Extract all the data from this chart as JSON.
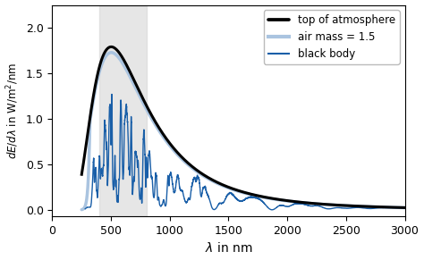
{
  "title": "",
  "xlabel": "$\\lambda$ in nm",
  "ylabel": "$dE/d\\lambda$ in W/m$^2$/nm",
  "xlim": [
    0,
    3000
  ],
  "ylim": [
    -0.07,
    2.25
  ],
  "xticks": [
    0,
    500,
    1000,
    1500,
    2000,
    2500,
    3000
  ],
  "yticks": [
    0.0,
    0.5,
    1.0,
    1.5,
    2.0
  ],
  "shaded_region": [
    400,
    800
  ],
  "shaded_color": "#d3d3d3",
  "shaded_alpha": 0.55,
  "black_body_color": "#000000",
  "black_body_linewidth": 2.2,
  "toa_color": "#aac4e0",
  "toa_linewidth": 2.5,
  "air_mass_color": "#1a5fa8",
  "air_mass_linewidth": 1.0,
  "legend_labels": [
    "black body",
    "top of atmosphere",
    "air mass = 1.5"
  ],
  "legend_loc": "upper right",
  "background_color": "#ffffff"
}
